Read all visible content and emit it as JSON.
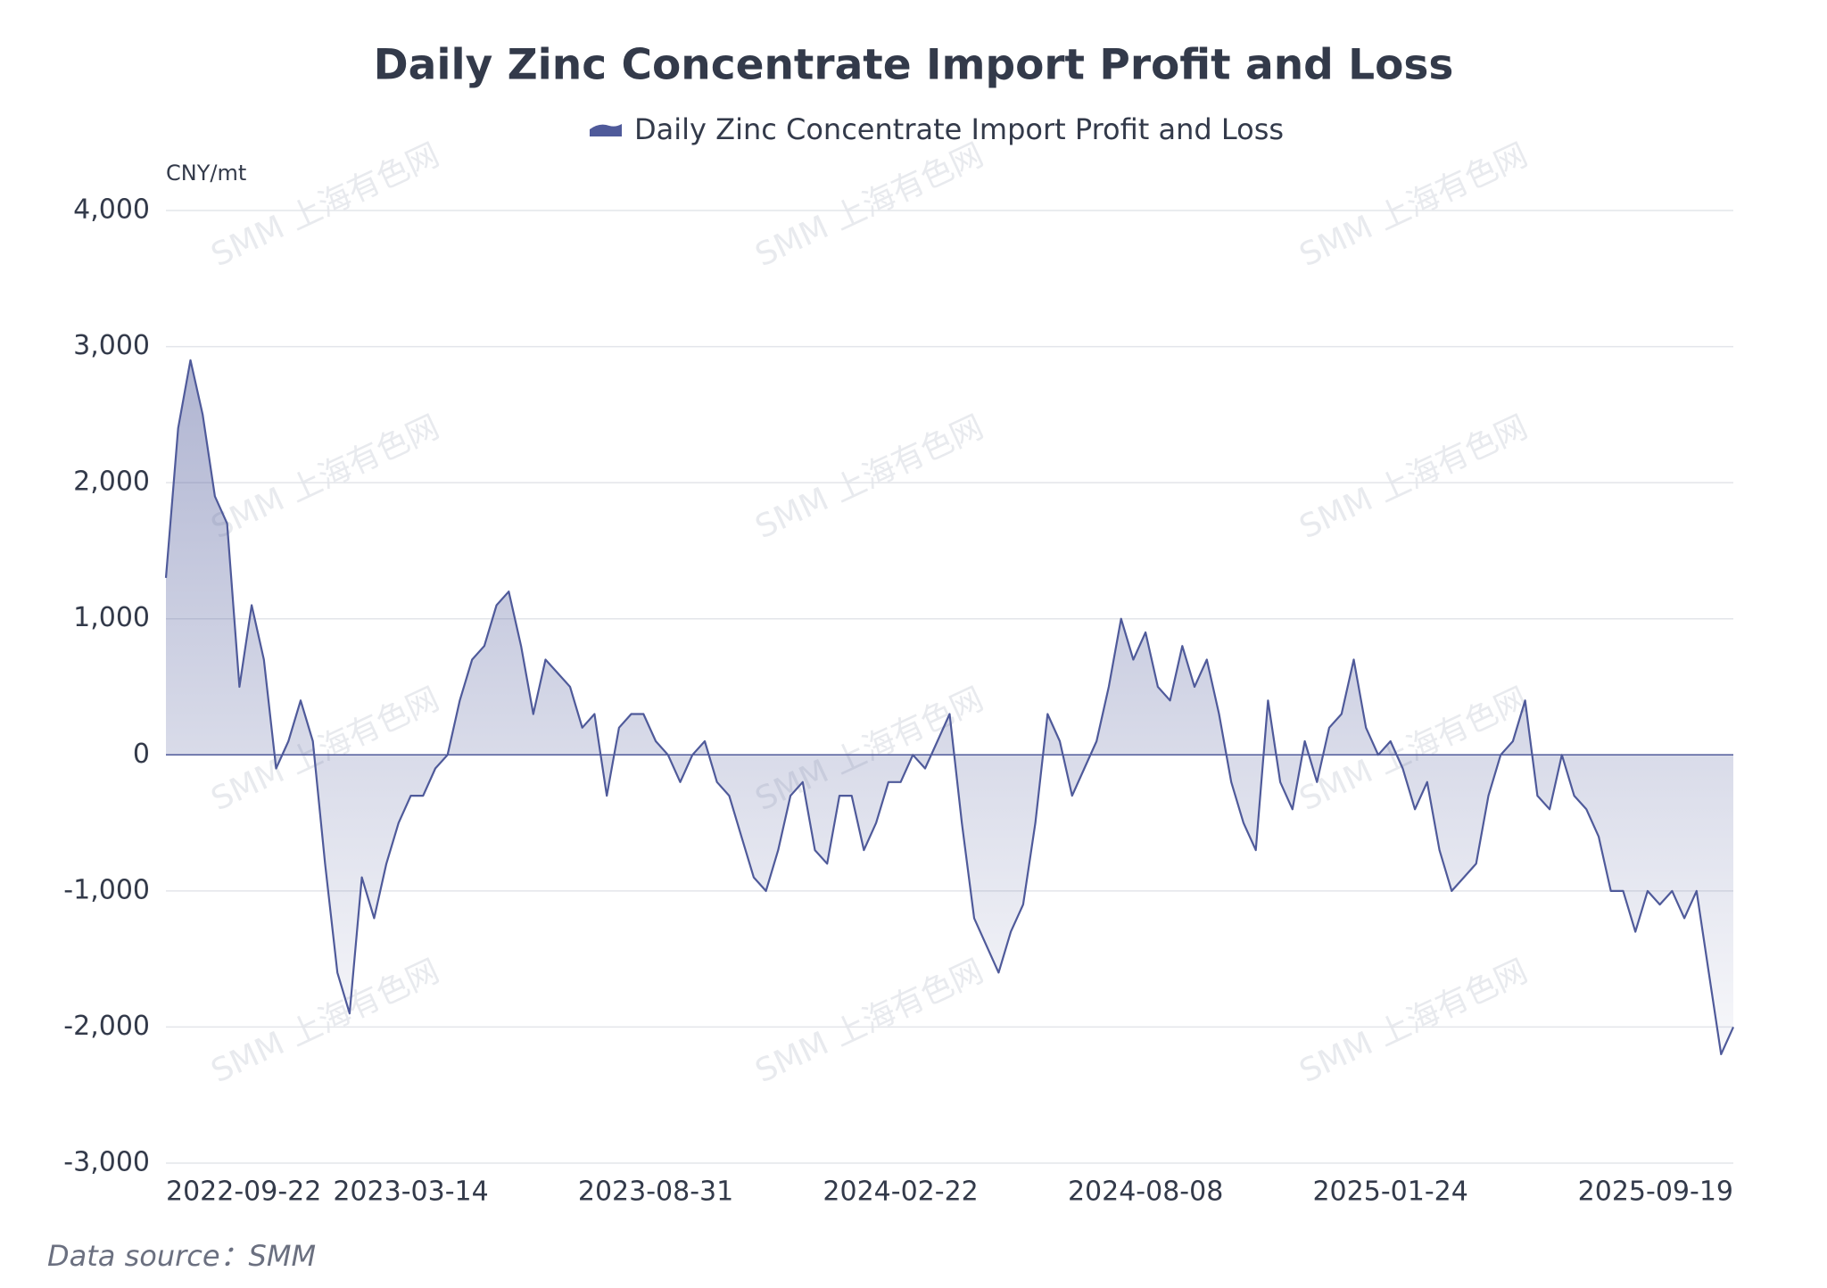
{
  "chart_data": {
    "type": "area",
    "title": "Daily Zinc Concentrate Import Profit and Loss",
    "y_axis_label": "CNY/mt",
    "source": "Data source：SMM",
    "watermark": "SMM 上海有色网",
    "legend_position": "top",
    "grid": true,
    "ylim": [
      -3000,
      4000
    ],
    "yticks": [
      {
        "value": -3000,
        "label": "-3,000"
      },
      {
        "value": -2000,
        "label": "-2,000"
      },
      {
        "value": -1000,
        "label": "-1,000"
      },
      0,
      {
        "value": 1000,
        "label": "1,000"
      },
      {
        "value": 2000,
        "label": "2,000"
      },
      {
        "value": 3000,
        "label": "3,000"
      },
      {
        "value": 4000,
        "label": "4,000"
      }
    ],
    "categories": [
      "2022-09-22",
      null,
      null,
      null,
      null,
      null,
      null,
      null,
      null,
      null,
      null,
      null,
      null,
      null,
      null,
      null,
      null,
      null,
      null,
      null,
      "2023-03-14",
      null,
      null,
      null,
      null,
      null,
      null,
      null,
      null,
      null,
      null,
      null,
      null,
      null,
      null,
      null,
      null,
      null,
      null,
      null,
      "2023-08-31",
      null,
      null,
      null,
      null,
      null,
      null,
      null,
      null,
      null,
      null,
      null,
      null,
      null,
      null,
      null,
      null,
      null,
      null,
      null,
      "2024-02-22",
      null,
      null,
      null,
      null,
      null,
      null,
      null,
      null,
      null,
      null,
      null,
      null,
      null,
      null,
      null,
      null,
      null,
      null,
      null,
      "2024-08-08",
      null,
      null,
      null,
      null,
      null,
      null,
      null,
      null,
      null,
      null,
      null,
      null,
      null,
      null,
      null,
      null,
      null,
      null,
      null,
      "2025-01-24",
      null,
      null,
      null,
      null,
      null,
      null,
      null,
      null,
      null,
      null,
      null,
      null,
      null,
      null,
      null,
      null,
      null,
      null,
      null,
      null,
      null,
      null,
      null,
      null,
      null,
      null,
      null,
      "2025-09-19"
    ],
    "series": [
      {
        "name": "Daily Zinc Concentrate Import Profit and Loss",
        "color": "#4f5a9a",
        "values": [
          1300,
          2400,
          2900,
          2500,
          1900,
          1700,
          500,
          1100,
          700,
          -100,
          100,
          400,
          100,
          -800,
          -1600,
          -1900,
          -900,
          -1200,
          -800,
          -500,
          -300,
          -300,
          -100,
          0,
          400,
          700,
          800,
          1100,
          1200,
          800,
          300,
          700,
          600,
          500,
          200,
          300,
          -300,
          200,
          300,
          300,
          100,
          0,
          -200,
          0,
          100,
          -200,
          -300,
          -600,
          -900,
          -1000,
          -700,
          -300,
          -200,
          -700,
          -800,
          -300,
          -300,
          -700,
          -500,
          -200,
          -200,
          0,
          -100,
          100,
          300,
          -500,
          -1200,
          -1400,
          -1600,
          -1300,
          -1100,
          -500,
          300,
          100,
          -300,
          -100,
          100,
          500,
          1000,
          700,
          900,
          500,
          400,
          800,
          500,
          700,
          300,
          -200,
          -500,
          -700,
          400,
          -200,
          -400,
          100,
          -200,
          200,
          300,
          700,
          200,
          0,
          100,
          -100,
          -400,
          -200,
          -700,
          -1000,
          -900,
          -800,
          -300,
          0,
          100,
          400,
          -300,
          -400,
          0,
          -300,
          -400,
          -600,
          -1000,
          -1000,
          -1300,
          -1000,
          -1100,
          -1000,
          -1200,
          -1000,
          -1600,
          -2200,
          -2000
        ]
      }
    ]
  }
}
